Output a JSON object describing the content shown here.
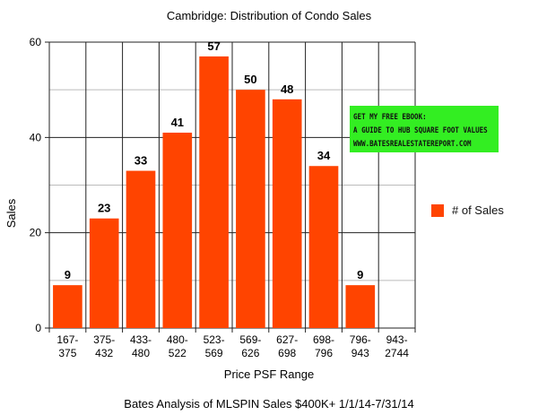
{
  "chart_data": {
    "type": "bar",
    "title": "Cambridge: Distribution of Condo Sales",
    "xlabel": "Price PSF Range",
    "ylabel": "Sales",
    "footnote": "Bates Analysis of MLSPIN Sales $400K+ 1/1/14-7/31/14",
    "categories": [
      [
        "167-",
        "375"
      ],
      [
        "375-",
        "432"
      ],
      [
        "433-",
        "480"
      ],
      [
        "480-",
        "522"
      ],
      [
        "523-",
        "569"
      ],
      [
        "569-",
        "626"
      ],
      [
        "627-",
        "698"
      ],
      [
        "698-",
        "796"
      ],
      [
        "796-",
        "943"
      ],
      [
        "943-",
        "2744"
      ]
    ],
    "series": [
      {
        "name": "# of Sales",
        "color": "#ff4400",
        "values": [
          9,
          23,
          33,
          41,
          57,
          50,
          48,
          34,
          9,
          0
        ]
      }
    ],
    "data_labels": [
      "9",
      "23",
      "33",
      "41",
      "57",
      "50",
      "48",
      "34",
      "9",
      ""
    ],
    "ylim": [
      0,
      60
    ],
    "yticks": [
      0,
      20,
      40,
      60
    ],
    "grid": true,
    "legend_position": "right"
  },
  "promo": {
    "line1": "GET MY FREE EBOOK:",
    "line2": "A GUIDE TO HUB SQUARE FOOT VALUES",
    "line3": "WWW.BATESREALESTATEREPORT.COM",
    "background": "#33ee22"
  },
  "legend": {
    "label": "# of Sales"
  }
}
